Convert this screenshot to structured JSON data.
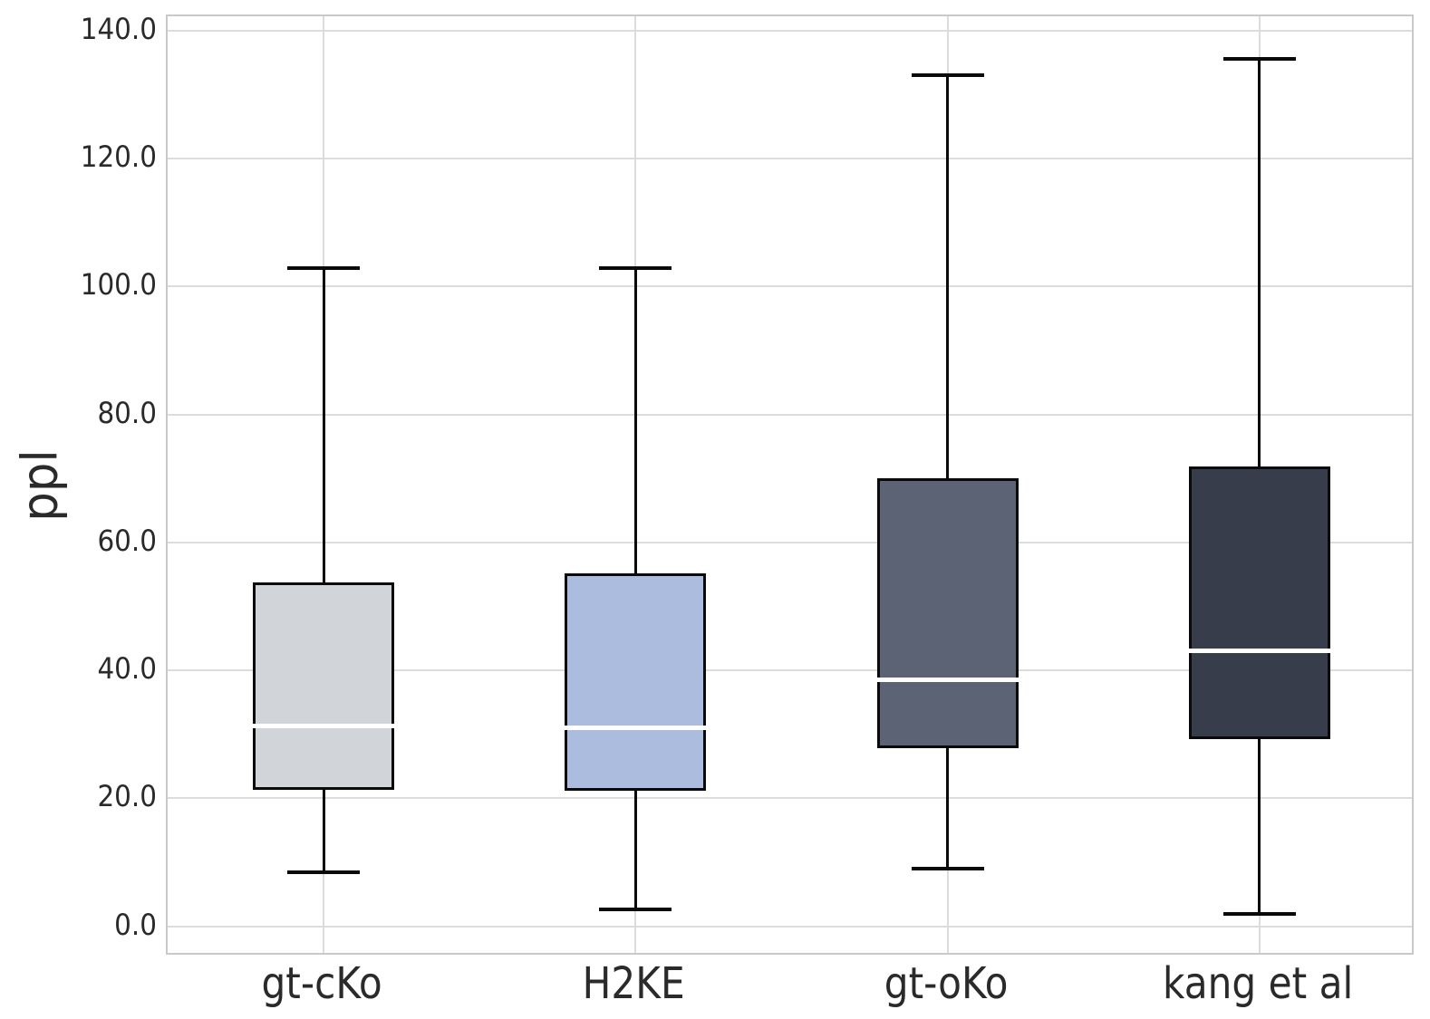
{
  "chart_data": {
    "type": "box",
    "title": "",
    "xlabel": "",
    "ylabel": "ppl",
    "categories": [
      "gt-cKo",
      "H2KE",
      "gt-oKo",
      "kang et al"
    ],
    "yticks": {
      "values": [
        0,
        20,
        40,
        60,
        80,
        100,
        120,
        140
      ],
      "labels": [
        "0.0",
        "20.0",
        "40.0",
        "60.0",
        "80.0",
        "100.0",
        "120.0",
        "140.0"
      ]
    },
    "ylim": [
      -4.7,
      142.2
    ],
    "grid": "both",
    "legend": "none",
    "series": [
      {
        "name": "gt-cKo",
        "whisker_low": 8.5,
        "q1": 21.3,
        "median": 31.3,
        "q3": 53.7,
        "whisker_high": 102.8,
        "fill": "#d1d4d8"
      },
      {
        "name": "H2KE",
        "whisker_low": 2.6,
        "q1": 21.2,
        "median": 31.0,
        "q3": 55.2,
        "whisker_high": 102.8,
        "fill": "#abbcde"
      },
      {
        "name": "gt-oKo",
        "whisker_low": 9.0,
        "q1": 27.9,
        "median": 38.6,
        "q3": 70.0,
        "whisker_high": 133.0,
        "fill": "#5c6375"
      },
      {
        "name": "kang et al",
        "whisker_low": 1.9,
        "q1": 29.2,
        "median": 43.0,
        "q3": 71.8,
        "whisker_high": 135.5,
        "fill": "#373d4a"
      }
    ],
    "colors": {
      "box_edge": "#0a0a0a",
      "whisker": "#0a0a0a",
      "median_line": "#ffffff",
      "gridline": "#dcdcdc",
      "spine": "#c9c9c9",
      "tick_text": "#2a2a2a"
    }
  }
}
